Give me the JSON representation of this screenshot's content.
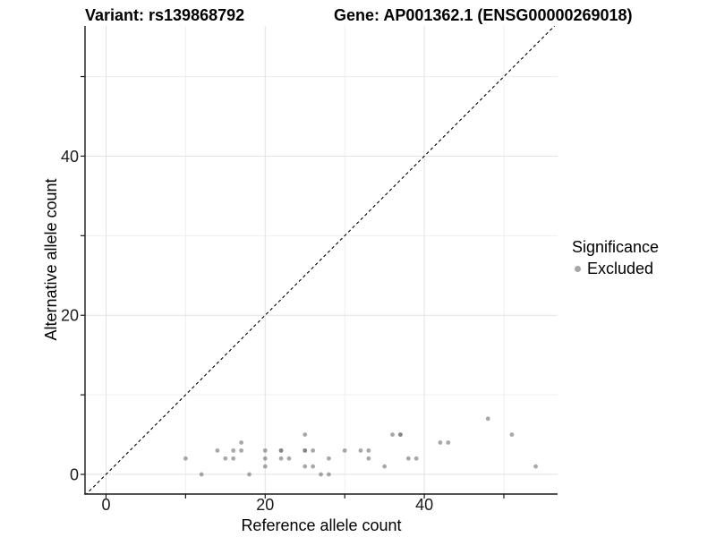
{
  "titles": {
    "left": "Variant: rs139868792",
    "right": "Gene: AP001362.1 (ENSG00000269018)"
  },
  "legend": {
    "title": "Significance",
    "items": [
      {
        "label": "Excluded",
        "color": "#a6a6a6"
      }
    ]
  },
  "chart_data": {
    "type": "scatter",
    "title": "",
    "xlabel": "Reference allele count",
    "ylabel": "Alternative allele count",
    "xlim": [
      -2.64,
      56.75
    ],
    "ylim": [
      -2.47,
      56.36
    ],
    "x_axis_ticks": [
      0,
      10,
      20,
      30,
      40,
      50
    ],
    "y_axis_ticks": [
      0,
      10,
      20,
      30,
      40,
      50
    ],
    "x_labeled_ticks": [
      0,
      20,
      40
    ],
    "y_labeled_ticks": [
      0,
      20,
      40
    ],
    "x_major_gridlines": [
      0,
      20,
      40
    ],
    "x_minor_gridlines": [
      10,
      30,
      50
    ],
    "y_major_gridlines": [
      0,
      20,
      40
    ],
    "y_minor_gridlines": [
      10,
      30,
      50
    ],
    "grid": "major+minor",
    "legend_position": "right",
    "identity_line": {
      "style": "dashed",
      "color": "#000000",
      "from": [
        -2.64,
        -2.64
      ],
      "to": [
        56.75,
        56.75
      ]
    },
    "series": [
      {
        "name": "Excluded",
        "significance": "Excluded",
        "point_color": "#6e6e6e",
        "point_opacity": 0.6,
        "points": [
          [
            10,
            2
          ],
          [
            12,
            0
          ],
          [
            14,
            3
          ],
          [
            15,
            2
          ],
          [
            16,
            2
          ],
          [
            16,
            3
          ],
          [
            17,
            3
          ],
          [
            17,
            4
          ],
          [
            18,
            0
          ],
          [
            20,
            1
          ],
          [
            20,
            2
          ],
          [
            20,
            3
          ],
          [
            22,
            2
          ],
          [
            22,
            3
          ],
          [
            22,
            3
          ],
          [
            23,
            2
          ],
          [
            25,
            1
          ],
          [
            25,
            3
          ],
          [
            25,
            3
          ],
          [
            25,
            5
          ],
          [
            26,
            1
          ],
          [
            26,
            3
          ],
          [
            27,
            0
          ],
          [
            28,
            0
          ],
          [
            28,
            2
          ],
          [
            30,
            3
          ],
          [
            32,
            3
          ],
          [
            33,
            2
          ],
          [
            33,
            3
          ],
          [
            35,
            1
          ],
          [
            36,
            5
          ],
          [
            37,
            5
          ],
          [
            37,
            5
          ],
          [
            38,
            2
          ],
          [
            39,
            2
          ],
          [
            42,
            4
          ],
          [
            43,
            4
          ],
          [
            48,
            7
          ],
          [
            51,
            5
          ],
          [
            54,
            1
          ]
        ]
      }
    ]
  },
  "colors": {
    "background": "#ffffff",
    "grid_major": "#e2e2e2",
    "grid_minor": "#efefef",
    "axis_line": "#1a1a1a",
    "tick_label": "#1a1a1a",
    "point": "#6e6e6e"
  }
}
